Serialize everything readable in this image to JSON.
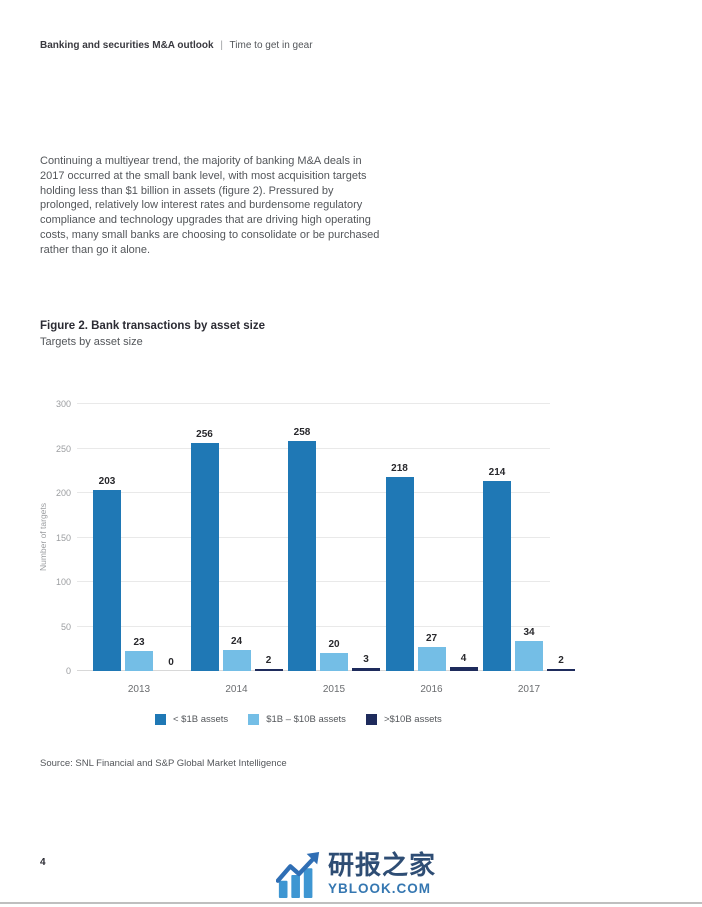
{
  "header": {
    "title": "Banking and securities M&A outlook",
    "separator": "|",
    "subtitle": "Time to get in gear"
  },
  "body": {
    "paragraph": "Continuing a multiyear trend, the majority of banking M&A deals in 2017 occurred at the small bank level, with most acquisition targets holding less than $1 billion in assets (figure 2). Pressured by prolonged, relatively low interest rates and burdensome regulatory compliance and technology upgrades that are driving high operating costs, many small banks are choosing to consolidate or be purchased rather than go it alone."
  },
  "figure": {
    "title": "Figure 2. Bank transactions by asset size",
    "subtitle": "Targets by asset size",
    "source": "Source: SNL Financial and S&P Global Market Intelligence"
  },
  "chart_data": {
    "type": "bar",
    "title": "Figure 2. Bank transactions by asset size",
    "subtitle": "Targets by asset size",
    "categories": [
      "2013",
      "2014",
      "2015",
      "2016",
      "2017"
    ],
    "series": [
      {
        "name": "< $1B assets",
        "color": "#1f78b5",
        "values": [
          203,
          256,
          258,
          218,
          214
        ]
      },
      {
        "name": "$1B – $10B assets",
        "color": "#74bee6",
        "values": [
          23,
          24,
          20,
          27,
          34
        ]
      },
      {
        "name": ">$10B assets",
        "color": "#1e2b5c",
        "values": [
          0,
          2,
          3,
          4,
          2
        ]
      }
    ],
    "xlabel": "",
    "ylabel": "Number of targets",
    "ylim": [
      0,
      300
    ],
    "ytick_step": 50,
    "grid": true,
    "legend_position": "bottom"
  },
  "footer": {
    "page_number": "4"
  },
  "watermark": {
    "icon": "bar-chart-arrow-icon",
    "title": "研报之家",
    "url": "YBLOOK.COM",
    "title_color": "#2e4d74",
    "url_color": "#3577b1",
    "bar_color": "#3e96d2",
    "arrow_color": "#2f6eb4"
  }
}
